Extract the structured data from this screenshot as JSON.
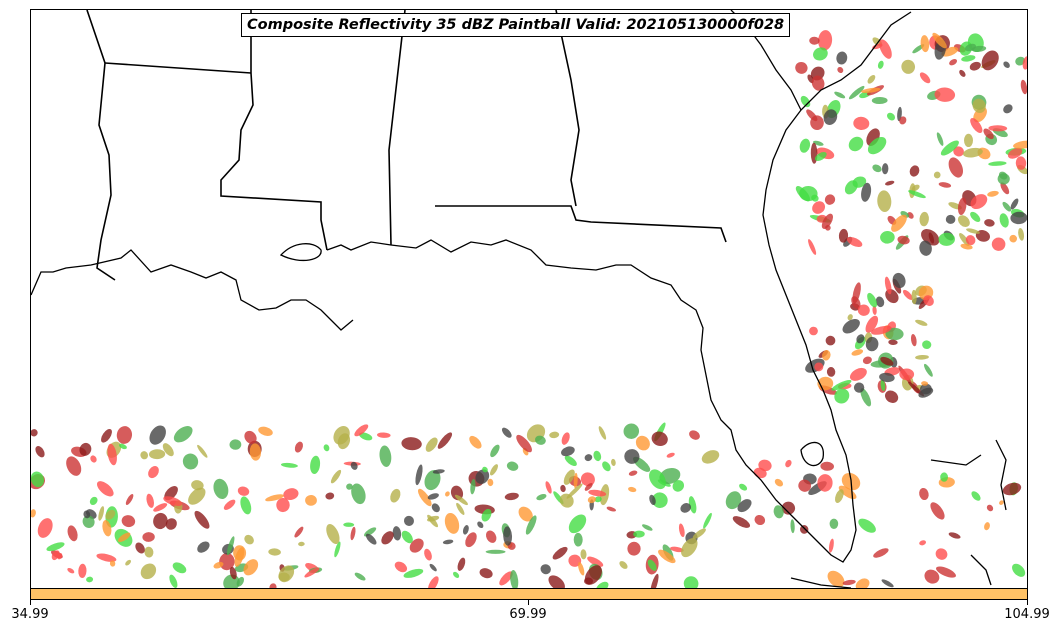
{
  "title": "Composite Reflectivity 35 dBZ Paintball Valid: 202105130000f028",
  "colorbar": {
    "color": "#ffc266",
    "ticks": [
      "34.99",
      "69.99",
      "104.99"
    ]
  },
  "map": {
    "region": "southeast-united-states",
    "borders_color": "#000000",
    "member_colors": [
      "#ff4d4d",
      "#ff9933",
      "#b5b04a",
      "#4caf50",
      "#444444",
      "#8b1a1a",
      "#44dd44",
      "#cc3333"
    ]
  }
}
